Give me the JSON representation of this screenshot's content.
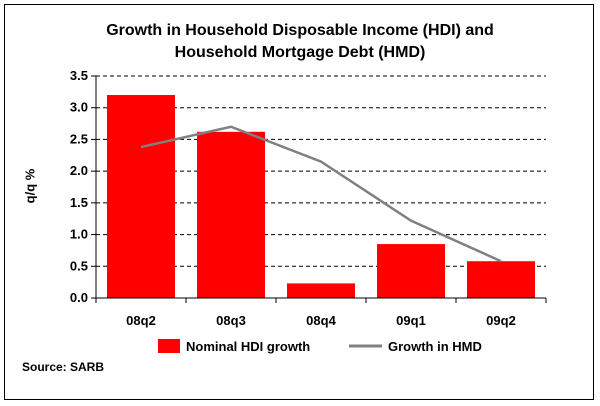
{
  "chart_data": {
    "type": "bar",
    "title_lines": [
      "Growth in Household Disposable Income (HDI) and",
      "Household Mortgage Debt (HMD)"
    ],
    "ylabel": "q/q %",
    "xlabel": "",
    "categories": [
      "08q2",
      "08q3",
      "08q4",
      "09q1",
      "09q2"
    ],
    "ylim": [
      0,
      3.5
    ],
    "yticks": [
      "0.0",
      "0.5",
      "1.0",
      "1.5",
      "2.0",
      "2.5",
      "3.0",
      "3.5"
    ],
    "grid": "horizontal dashed",
    "legend_position": "bottom",
    "series": [
      {
        "name": "Nominal HDI growth",
        "kind": "bar",
        "color": "#ff0000",
        "values": [
          3.2,
          2.62,
          0.23,
          0.85,
          0.58
        ]
      },
      {
        "name": "Growth in HMD",
        "kind": "line",
        "color": "#808080",
        "values": [
          2.38,
          2.7,
          2.15,
          1.22,
          0.58
        ]
      }
    ],
    "source": "Source: SARB"
  }
}
